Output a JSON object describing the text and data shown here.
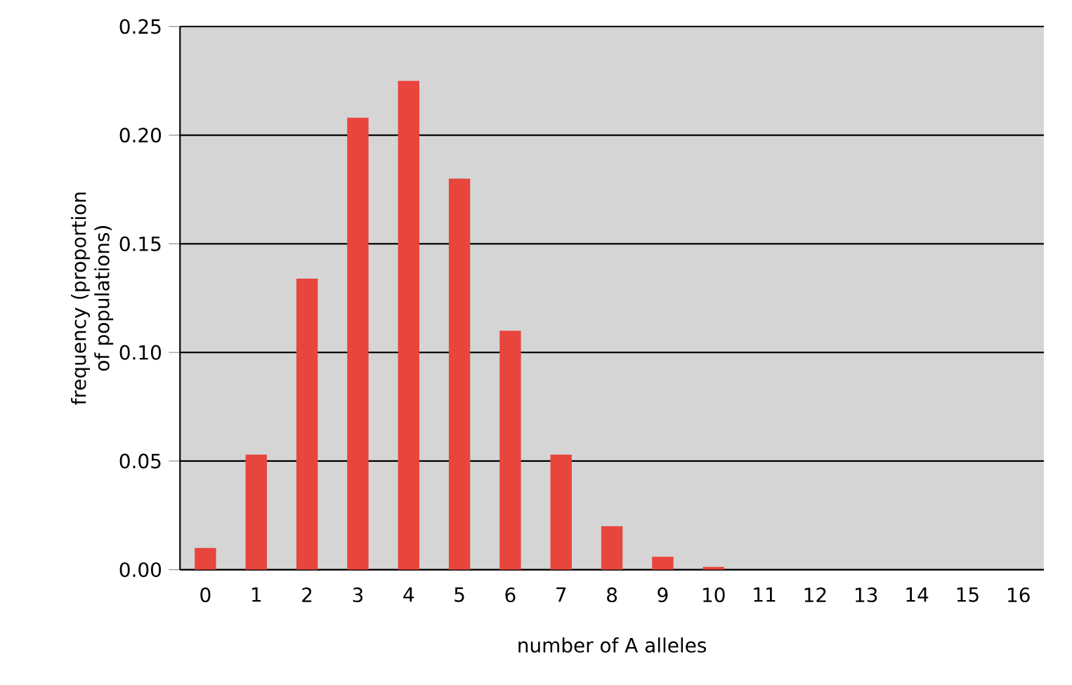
{
  "chart_data": {
    "type": "bar",
    "xlabel": "number of A alleles",
    "ylabel": "frequency (proportion of populations)",
    "categories": [
      "0",
      "1",
      "2",
      "3",
      "4",
      "5",
      "6",
      "7",
      "8",
      "9",
      "10",
      "11",
      "12",
      "13",
      "14",
      "15",
      "16"
    ],
    "values": [
      0.01,
      0.053,
      0.134,
      0.208,
      0.225,
      0.18,
      0.11,
      0.053,
      0.02,
      0.006,
      0.0013,
      0,
      0,
      0,
      0,
      0,
      0
    ],
    "color": "#e8453c",
    "ylim": [
      0,
      0.25
    ],
    "yticks": [
      {
        "value": 0,
        "label": "0.00"
      },
      {
        "value": 0.05,
        "label": "0.05"
      },
      {
        "value": 0.1,
        "label": "0.10"
      },
      {
        "value": 0.15,
        "label": "0.15"
      },
      {
        "value": 0.2,
        "label": "0.20"
      },
      {
        "value": 0.25,
        "label": "0.25"
      }
    ],
    "grid": "y"
  }
}
